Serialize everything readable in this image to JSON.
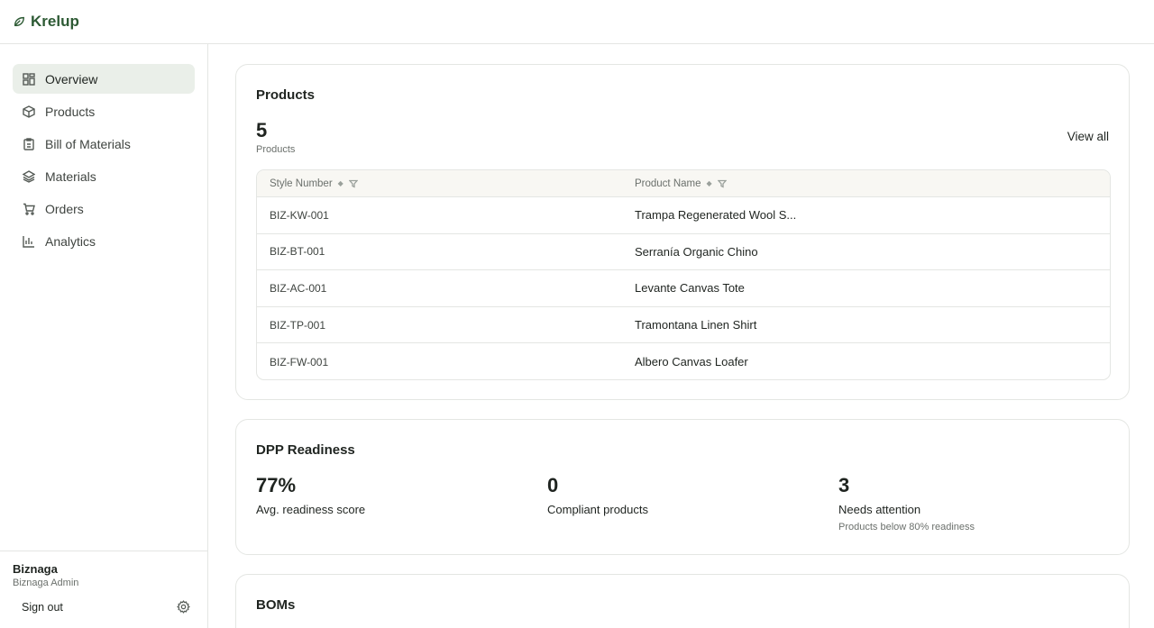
{
  "brand": {
    "name": "Krelup",
    "icon": "leaf-icon",
    "color": "#2d5a34"
  },
  "sidebar": {
    "items": [
      {
        "label": "Overview",
        "icon": "grid-icon",
        "active": true
      },
      {
        "label": "Products",
        "icon": "box-icon",
        "active": false
      },
      {
        "label": "Bill of Materials",
        "icon": "clipboard-icon",
        "active": false
      },
      {
        "label": "Materials",
        "icon": "layers-icon",
        "active": false
      },
      {
        "label": "Orders",
        "icon": "cart-icon",
        "active": false
      },
      {
        "label": "Analytics",
        "icon": "bar-chart-icon",
        "active": false
      }
    ],
    "footer": {
      "org_name": "Biznaga",
      "role": "Biznaga Admin",
      "sign_out": "Sign out",
      "settings_icon": "gear-icon"
    }
  },
  "products": {
    "title": "Products",
    "count": "5",
    "count_label": "Products",
    "view_all": "View all",
    "columns": [
      "Style Number",
      "Product Name"
    ],
    "rows": [
      {
        "style": "BIZ-KW-001",
        "name": "Trampa Regenerated Wool S..."
      },
      {
        "style": "BIZ-BT-001",
        "name": "Serranía Organic Chino"
      },
      {
        "style": "BIZ-AC-001",
        "name": "Levante Canvas Tote"
      },
      {
        "style": "BIZ-TP-001",
        "name": "Tramontana Linen Shirt"
      },
      {
        "style": "BIZ-FW-001",
        "name": "Albero Canvas Loafer"
      }
    ]
  },
  "dpp": {
    "title": "DPP Readiness",
    "stats": [
      {
        "value": "77%",
        "label": "Avg. readiness score",
        "sub": ""
      },
      {
        "value": "0",
        "label": "Compliant products",
        "sub": ""
      },
      {
        "value": "3",
        "label": "Needs attention",
        "sub": "Products below 80% readiness"
      }
    ]
  },
  "boms": {
    "title": "BOMs"
  }
}
